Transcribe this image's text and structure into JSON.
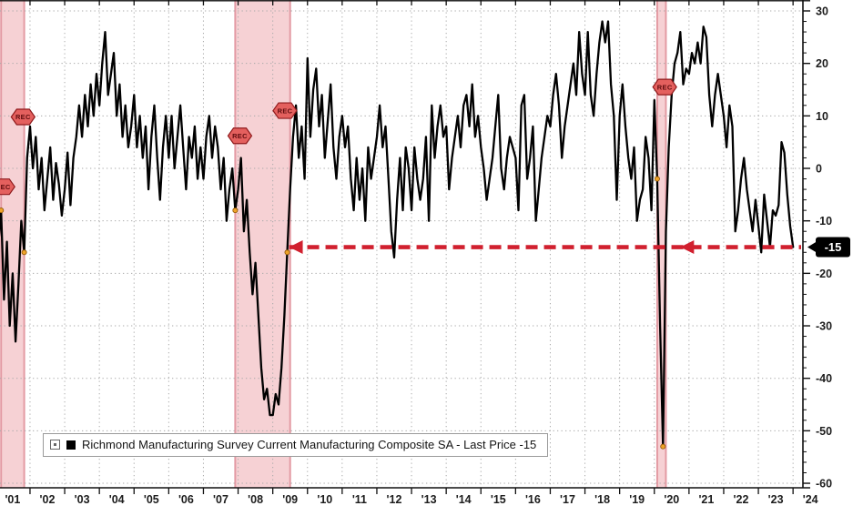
{
  "legend": {
    "label": "Richmond Manufacturing Survey Current Manufacturing Composite SA - Last Price -15"
  },
  "last_price_badge": {
    "text": "-15"
  },
  "rec_flag_label": "REC",
  "chart_data": {
    "type": "line",
    "title": "Richmond Manufacturing Survey Current Manufacturing Composite SA",
    "xlabel": "",
    "ylabel": "",
    "ylim": [
      -60,
      30
    ],
    "y_ticks": [
      30,
      20,
      10,
      0,
      -10,
      -20,
      -30,
      -40,
      -50,
      -60
    ],
    "x_years": [
      2001,
      2002,
      2003,
      2004,
      2005,
      2006,
      2007,
      2008,
      2009,
      2010,
      2011,
      2012,
      2013,
      2014,
      2015,
      2016,
      2017,
      2018,
      2019,
      2020,
      2021,
      2022,
      2023,
      2024
    ],
    "x_tick_labels": [
      "'01",
      "'02",
      "'03",
      "'04",
      "'05",
      "'06",
      "'07",
      "'08",
      "'09",
      "'10",
      "'11",
      "'12",
      "'13",
      "'14",
      "'15",
      "'16",
      "'17",
      "'18",
      "'19",
      "'20",
      "'21",
      "'22",
      "'23",
      "'24"
    ],
    "grid": true,
    "legend_position": "bottom-left",
    "series": [
      {
        "name": "Richmond Manufacturing Survey Current Manufacturing Composite SA",
        "color": "#000000",
        "last_price": -15,
        "start_t": 2000.8333,
        "interval": 0.0833333,
        "values": [
          4,
          -2,
          -6,
          -15,
          -8,
          -25,
          -14,
          -30,
          -20,
          -33,
          -22,
          -10,
          -16,
          2,
          8,
          0,
          6,
          -4,
          2,
          -8,
          -2,
          4,
          -6,
          1,
          -3,
          -9,
          -4,
          3,
          -7,
          2,
          6,
          12,
          6,
          14,
          8,
          16,
          10,
          18,
          12,
          20,
          26,
          14,
          18,
          22,
          10,
          16,
          6,
          12,
          4,
          8,
          14,
          4,
          10,
          2,
          8,
          -4,
          6,
          12,
          2,
          -6,
          4,
          10,
          2,
          10,
          0,
          6,
          12,
          4,
          -4,
          6,
          2,
          8,
          -2,
          4,
          -2,
          6,
          10,
          2,
          8,
          4,
          -4,
          2,
          -10,
          -4,
          0,
          -8,
          -4,
          2,
          -12,
          -6,
          -16,
          -24,
          -18,
          -28,
          -38,
          -44,
          -42,
          -47,
          -47,
          -43,
          -45,
          -38,
          -28,
          -16,
          -4,
          6,
          12,
          2,
          8,
          -2,
          21,
          6,
          15,
          19,
          8,
          14,
          2,
          9,
          16,
          4,
          -2,
          6,
          10,
          4,
          8,
          -2,
          -8,
          2,
          -6,
          0,
          -10,
          4,
          -2,
          2,
          6,
          12,
          4,
          8,
          -2,
          -12,
          -17,
          -6,
          2,
          -8,
          4,
          0,
          -8,
          4,
          -2,
          -6,
          -2,
          6,
          -10,
          12,
          2,
          8,
          12,
          6,
          8,
          -4,
          2,
          6,
          10,
          4,
          12,
          14,
          8,
          16,
          6,
          10,
          4,
          0,
          -6,
          -2,
          2,
          8,
          14,
          0,
          -4,
          2,
          6,
          4,
          2,
          -8,
          12,
          14,
          -2,
          2,
          8,
          -10,
          -4,
          2,
          6,
          10,
          8,
          14,
          18,
          12,
          2,
          8,
          12,
          16,
          20,
          14,
          26,
          18,
          14,
          26,
          14,
          10,
          18,
          24,
          28,
          24,
          28,
          16,
          10,
          -6,
          10,
          16,
          8,
          2,
          -2,
          4,
          -10,
          -6,
          -4,
          6,
          2,
          -8,
          13,
          -2,
          -30,
          -53,
          -12,
          4,
          14,
          20,
          22,
          26,
          16,
          19,
          18,
          22,
          20,
          24,
          20,
          27,
          25,
          14,
          8,
          14,
          18,
          14,
          10,
          4,
          12,
          8,
          -12,
          -8,
          -2,
          2,
          -4,
          -8,
          -12,
          -6,
          -11,
          -16,
          -5,
          -10,
          -15,
          -8,
          -9,
          -7,
          5,
          3,
          -5,
          -11,
          -15
        ]
      }
    ],
    "recession_bands": [
      {
        "start": 2001.1667,
        "end": 2001.8333
      },
      {
        "start": 2007.9167,
        "end": 2009.5
      },
      {
        "start": 2020.0833,
        "end": 2020.3333
      }
    ],
    "recession_flags": [
      {
        "t": 2001.22,
        "v": -3.5
      },
      {
        "t": 2001.8,
        "v": 9.8
      },
      {
        "t": 2008.05,
        "v": 6.2
      },
      {
        "t": 2009.35,
        "v": 11
      },
      {
        "t": 2020.3,
        "v": 15.5
      }
    ],
    "recession_boundary_dots": [
      {
        "t": 2001.1667,
        "v": -8
      },
      {
        "t": 2001.8333,
        "v": -16
      },
      {
        "t": 2007.9167,
        "v": -8
      },
      {
        "t": 2009.4167,
        "v": -16
      },
      {
        "t": 2020.0833,
        "v": -2
      },
      {
        "t": 2020.25,
        "v": -53
      }
    ],
    "annotation_arrow": {
      "value": -15,
      "from_t": 2009.47,
      "to_t": 2024.25,
      "head_ts": [
        2009.47,
        2020.75
      ]
    },
    "colors": {
      "line": "#000000",
      "recession_fill": "#f5c9cd",
      "recession_edge": "#e39aa3",
      "grid": "#a9a9a9",
      "axis_text": "#1c1c1c",
      "arrow": "#d1202f",
      "flag_fill": "#e4605e",
      "flag_stroke": "#8f1a1c",
      "flag_text": "#5f0c0e",
      "dot_fill": "#efa32a",
      "dot_stroke": "#8a5200",
      "badge_bg": "#000000",
      "badge_text": "#ffffff"
    }
  }
}
